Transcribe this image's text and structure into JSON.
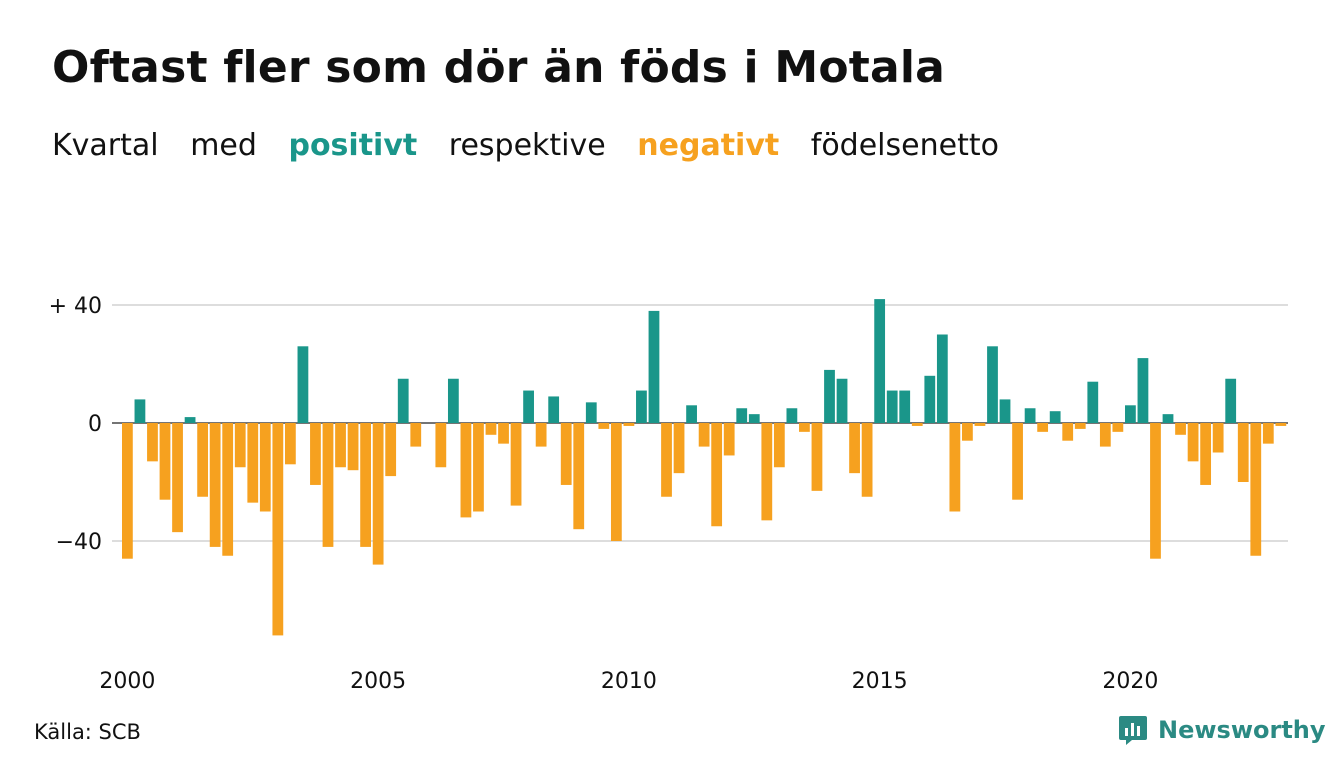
{
  "title": "Oftast fler som dör än föds i Motala",
  "subtitle": {
    "word1": "Kvartal",
    "word2": "med",
    "positive": "positivt",
    "word3": "respektive",
    "negative": "negativt",
    "word4": "födelsenetto"
  },
  "source": "Källa: SCB",
  "brand": "Newsworthy",
  "colors": {
    "positive": "#1a968a",
    "negative": "#f6a11f",
    "grid": "#dddddd",
    "text": "#111111",
    "brand": "#2b8a83"
  },
  "chart_data": {
    "type": "bar",
    "title": "Oftast fler som dör än föds i Motala",
    "subtitle": "Kvartal med positivt respektive negativt födelsenetto",
    "x_start": "2000 Q1",
    "period": "quarter",
    "ylim": [
      -72,
      42
    ],
    "y_ticks": [
      40,
      0,
      -40
    ],
    "y_tick_labels": [
      "+ 40",
      "0",
      "−40"
    ],
    "x_tick_labels": [
      "2000",
      "2005",
      "2010",
      "2015",
      "2020"
    ],
    "grid": true,
    "values": [
      -46,
      8,
      -13,
      -26,
      -37,
      2,
      -25,
      -42,
      -45,
      -15,
      -27,
      -30,
      -72,
      -14,
      26,
      -21,
      -42,
      -15,
      -16,
      -42,
      -48,
      -18,
      15,
      -8,
      0,
      -15,
      15,
      -32,
      -30,
      -4,
      -7,
      -28,
      11,
      -8,
      9,
      -21,
      -36,
      7,
      -2,
      -40,
      -1,
      11,
      38,
      -25,
      -17,
      6,
      -8,
      -35,
      -11,
      5,
      3,
      -33,
      -15,
      5,
      -3,
      -23,
      18,
      15,
      -17,
      -25,
      42,
      11,
      11,
      -1,
      16,
      30,
      -30,
      -6,
      -1,
      26,
      8,
      -26,
      5,
      -3,
      4,
      -6,
      -2,
      14,
      -8,
      -3,
      6,
      22,
      -46,
      3,
      -4,
      -13,
      -21,
      -10,
      15,
      -20,
      -45,
      -7,
      -1
    ]
  }
}
